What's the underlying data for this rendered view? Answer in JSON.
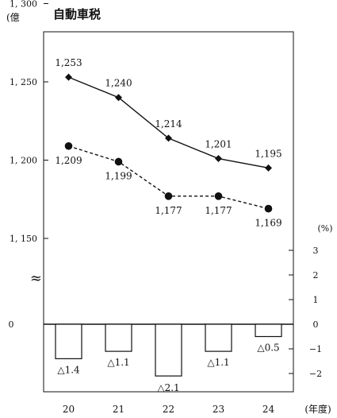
{
  "chart_data": {
    "type": "line+bar",
    "title": "自動車税",
    "y_unit_label": "(億",
    "y2_unit_label": "(%)",
    "x_unit_label": "(年度)",
    "categories": [
      "20",
      "21",
      "22",
      "23",
      "24"
    ],
    "left_axis": {
      "ticks": [
        "1, 300",
        "1, 250",
        "1, 200",
        "1, 150"
      ],
      "tick_values": [
        1300,
        1250,
        1200,
        1150
      ],
      "zero_label": "0",
      "break_symbol": "≈",
      "range": [
        1150,
        1300
      ]
    },
    "right_axis": {
      "ticks": [
        "3",
        "2",
        "1",
        "0",
        "−1",
        "−2"
      ],
      "tick_values": [
        3,
        2,
        1,
        0,
        -1,
        -2
      ]
    },
    "series": [
      {
        "style": "solid-diamond",
        "values": [
          1253,
          1240,
          1214,
          1201,
          1195
        ],
        "labels": [
          "1,253",
          "1,240",
          "1,214",
          "1,201",
          "1,195"
        ]
      },
      {
        "style": "dashed-circle",
        "values": [
          1209,
          1199,
          1177,
          1177,
          1169
        ],
        "labels": [
          "1,209",
          "1,199",
          "1,177",
          "1,177",
          "1,169"
        ]
      }
    ],
    "bars": {
      "values": [
        -1.4,
        -1.1,
        -2.1,
        -1.1,
        -0.5
      ],
      "labels": [
        "△1.4",
        "△1.1",
        "△2.1",
        "△1.1",
        "△0.5"
      ]
    }
  }
}
